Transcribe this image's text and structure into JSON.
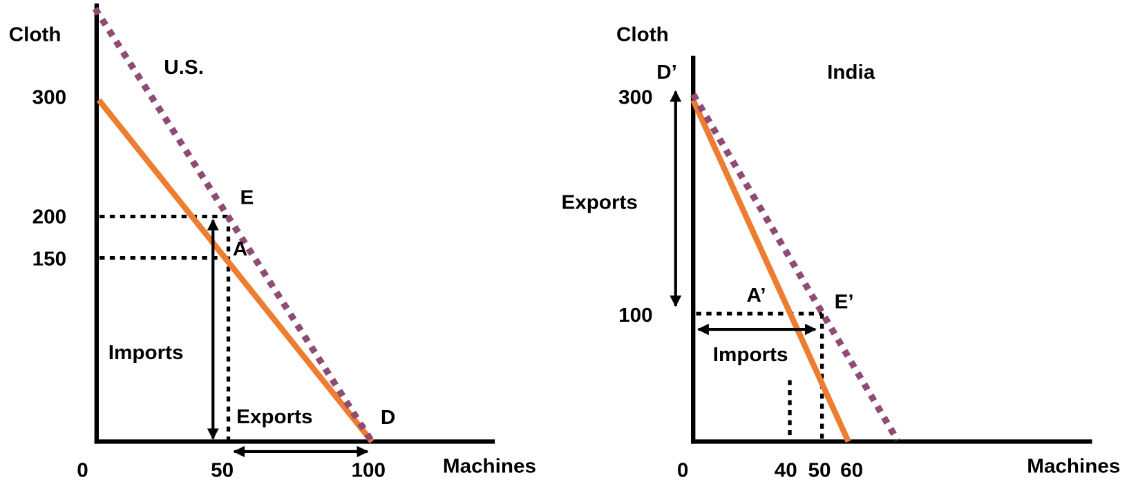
{
  "us_panel": {
    "y_label": "Cloth",
    "x_label": "Machines",
    "country": "U.S.",
    "y_ticks": [
      "300",
      "200",
      "150"
    ],
    "x_ticks": [
      "0",
      "50",
      "100"
    ],
    "points": {
      "e": "E",
      "a": "A",
      "d": "D"
    },
    "imports": "Imports",
    "exports": "Exports"
  },
  "india_panel": {
    "y_label": "Cloth",
    "x_label": "Machines",
    "country": "India",
    "y_ticks": [
      "300",
      "100"
    ],
    "x_ticks": [
      "0",
      "40",
      "50",
      "60"
    ],
    "points": {
      "d": "D’",
      "a": "A’",
      "e": "E’"
    },
    "exports": "Exports",
    "imports": "Imports"
  }
}
